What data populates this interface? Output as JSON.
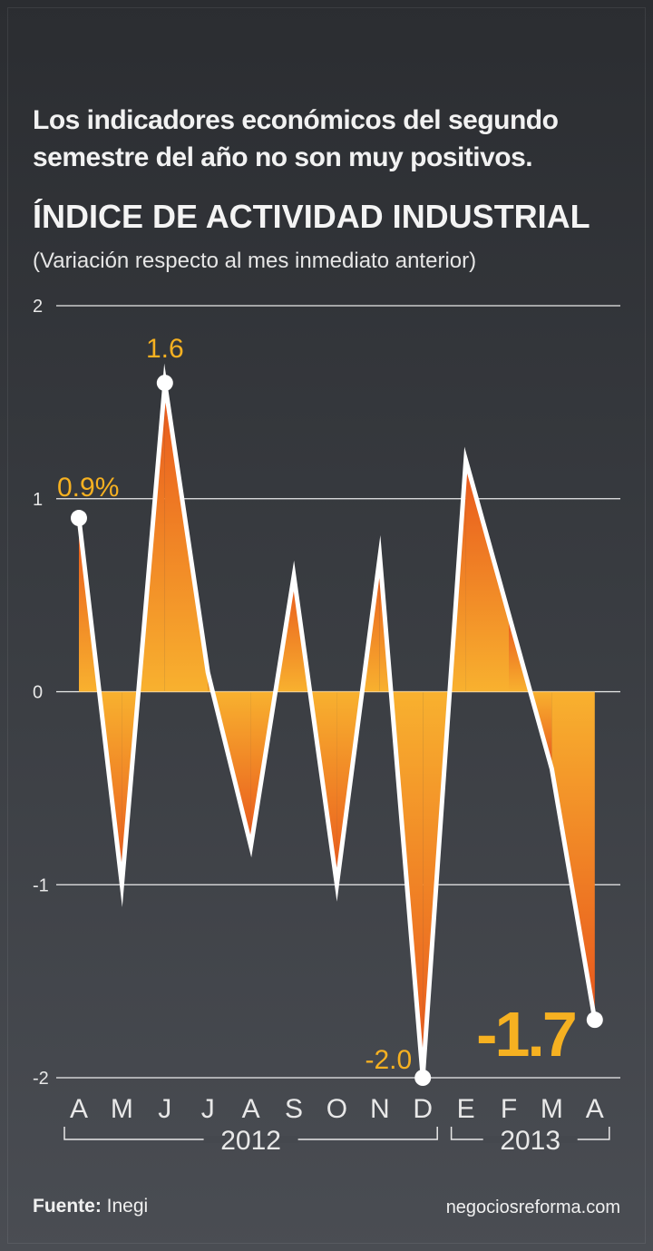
{
  "header": {
    "subtitle_line1": "Los indicadores económicos del segundo",
    "subtitle_line2": "semestre del año no son muy positivos.",
    "title": "ÍNDICE DE ACTIVIDAD INDUSTRIAL",
    "note": "(Variación respecto al mes inmediato anterior)"
  },
  "footer": {
    "source_label": "Fuente:",
    "source_value": "Inegi",
    "website": "negociosreforma.com"
  },
  "colors": {
    "accent": "#f6b121",
    "fill_top": "#e8551c",
    "fill_zero": "#f8b12f",
    "line": "#ffffff",
    "grid": "#ffffff"
  },
  "chart_data": {
    "type": "area",
    "x": [
      "A",
      "M",
      "J",
      "J",
      "A",
      "S",
      "O",
      "N",
      "D",
      "E",
      "F",
      "M",
      "A"
    ],
    "values": [
      0.9,
      -1.0,
      1.6,
      0.1,
      -0.8,
      0.6,
      -1.0,
      0.7,
      -2.0,
      1.2,
      0.4,
      -0.4,
      -1.7
    ],
    "ylim": [
      -2,
      2
    ],
    "yticks": [
      "2",
      "1",
      "0",
      "-1",
      "-2"
    ],
    "year_groups": [
      {
        "label": "2012",
        "from": 0,
        "to": 8
      },
      {
        "label": "2013",
        "from": 9,
        "to": 12
      }
    ],
    "data_labels": [
      {
        "index": 0,
        "text": "0.9%"
      },
      {
        "index": 2,
        "text": "1.6"
      },
      {
        "index": 8,
        "text": "-2.0"
      },
      {
        "index": 12,
        "text": "-1.7"
      }
    ],
    "grid": true
  }
}
